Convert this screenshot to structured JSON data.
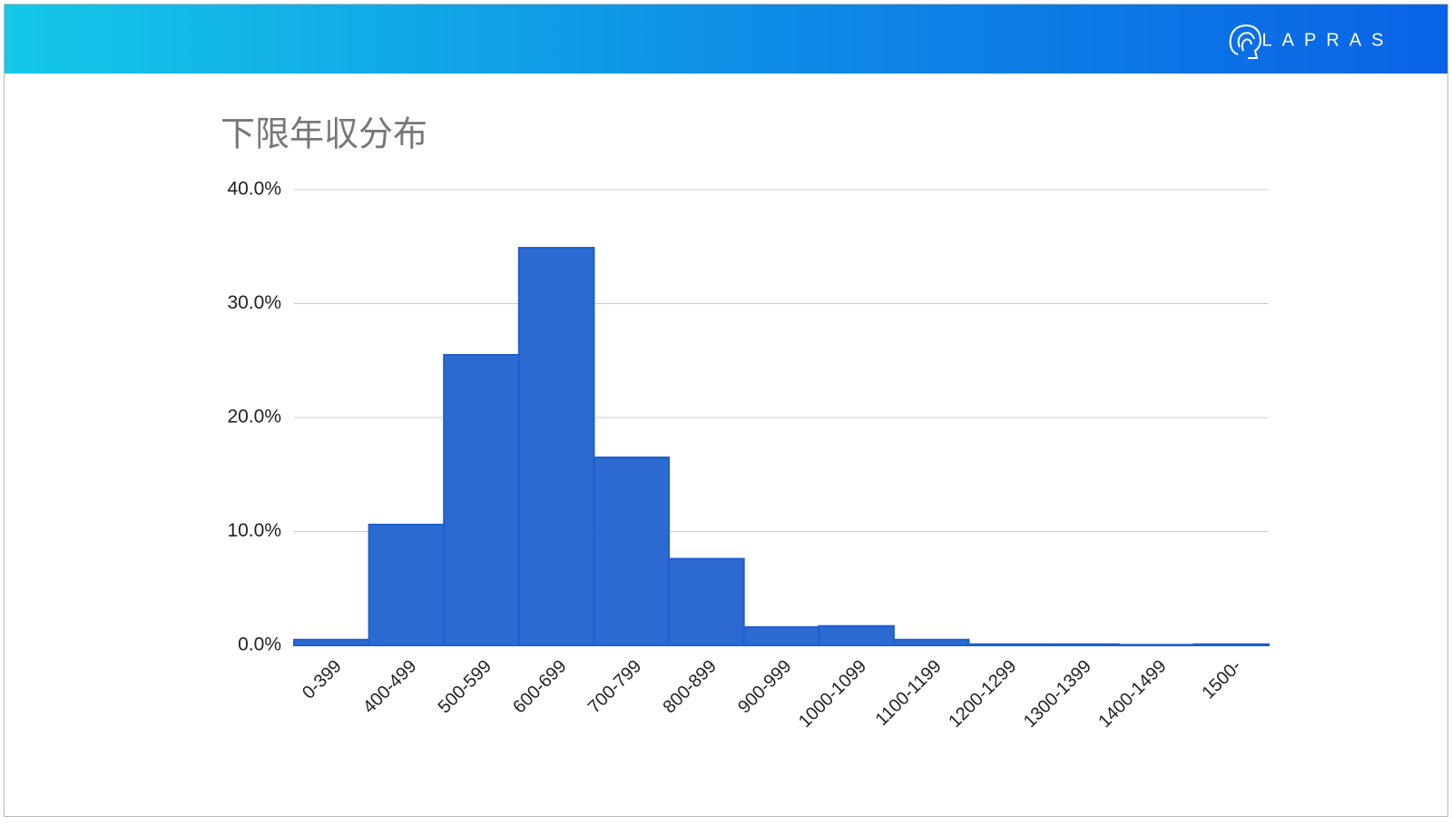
{
  "header": {
    "logo": "LAPRAS"
  },
  "chart_data": {
    "type": "bar",
    "title": "下限年収分布",
    "categories": [
      "0-399",
      "400-499",
      "500-599",
      "600-699",
      "700-799",
      "800-899",
      "900-999",
      "1000-1099",
      "1100-1199",
      "1200-1299",
      "1300-1399",
      "1400-1499",
      "1500-"
    ],
    "values": [
      0.5,
      10.6,
      25.5,
      34.9,
      16.5,
      7.6,
      1.6,
      1.7,
      0.5,
      0.1,
      0.1,
      0.05,
      0.1
    ],
    "color": "#2767d0",
    "ylim": [
      0,
      40
    ],
    "yticks": [
      {
        "value": 0,
        "label": "0.0%"
      },
      {
        "value": 10,
        "label": "10.0%"
      },
      {
        "value": 20,
        "label": "20.0%"
      },
      {
        "value": 30,
        "label": "30.0%"
      },
      {
        "value": 40,
        "label": "40.0%"
      }
    ],
    "grid": true
  }
}
